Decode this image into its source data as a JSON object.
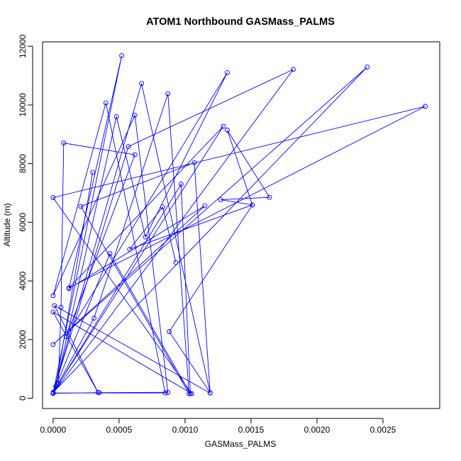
{
  "chart_data": {
    "type": "line",
    "title": "ATOM1 Northbound GASMass_PALMS",
    "xlabel": "GASMass_PALMS",
    "ylabel": "Altitude (m)",
    "xlim": [
      -8e-05,
      0.00293
    ],
    "ylim": [
      -350,
      12150
    ],
    "xticks": [
      0,
      0.0005,
      0.001,
      0.0015,
      0.002,
      0.0025
    ],
    "xtick_labels": [
      "0.0000",
      "0.0005",
      "0.0010",
      "0.0015",
      "0.0020",
      "0.0025"
    ],
    "yticks": [
      0,
      2000,
      4000,
      6000,
      8000,
      10000,
      12000
    ],
    "ytick_labels": [
      "0",
      "2000",
      "4000",
      "6000",
      "8000",
      "10000",
      "12000"
    ],
    "grid": false,
    "legend": "none",
    "colors": {
      "series": "#0000ff",
      "axes": "#000000"
    },
    "series": [
      {
        "points": [
          [
            0.0,
            170
          ],
          [
            0.00035,
            190
          ],
          [
            0.00087,
            200
          ],
          [
            0.00062,
            9650
          ],
          [
            0.0,
            3500
          ],
          [
            0.0004,
            10070
          ],
          [
            0.00085,
            180
          ],
          [
            0.0,
            180
          ],
          [
            0.00031,
            2730
          ],
          [
            0.00087,
            10380
          ],
          [
            0.00103,
            160
          ],
          [
            0.00021,
            6540
          ],
          [
            0.00107,
            8030
          ],
          [
            0.00119,
            180
          ],
          [
            1e-05,
            3160
          ],
          [
            0.00034,
            200
          ],
          [
            0.0,
            2940
          ],
          [
            0.00105,
            160
          ],
          [
            0.0,
            6840
          ],
          [
            0.00282,
            9950
          ],
          [
            0.00012,
            3760
          ],
          [
            0.00129,
            9270
          ],
          [
            0.0,
            190
          ],
          [
            0.00057,
            8580
          ],
          [
            0.00182,
            11210
          ],
          [
            0.0,
            170
          ],
          [
            0.00097,
            7300
          ],
          [
            0.00104,
            160
          ],
          [
            0.00043,
            4930
          ],
          [
            0.0,
            180
          ],
          [
            0.00052,
            11680
          ],
          [
            0.00012,
            3740
          ],
          [
            0.00115,
            6560
          ],
          [
            0.0,
            1830
          ],
          [
            0.00238,
            11290
          ],
          [
            0.0,
            200
          ],
          [
            0.00067,
            10730
          ],
          [
            0.00119,
            190
          ],
          [
            0.00088,
            2270
          ],
          [
            0.00151,
            6590
          ],
          [
            0.00127,
            6770
          ],
          [
            0.00164,
            6850
          ],
          [
            0.00132,
            9140
          ],
          [
            0.00151,
            6590
          ],
          [
            0.00058,
            5080
          ],
          [
            0.00083,
            6520
          ],
          [
            0.00093,
            4630
          ]
        ]
      },
      {
        "points": [
          [
            4e-05,
            500
          ],
          [
            6e-05,
            3100
          ],
          [
            8e-05,
            8700
          ],
          [
            0.00062,
            8300
          ],
          [
            0.0001,
            2100
          ],
          [
            0.00132,
            11100
          ],
          [
            0.0007,
            5500
          ],
          [
            0.00048,
            9600
          ],
          [
            2e-05,
            400
          ],
          [
            0.0003,
            7700
          ]
        ]
      }
    ]
  }
}
